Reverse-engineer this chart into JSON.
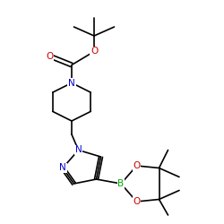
{
  "bg_color": "#ffffff",
  "bond_color": "#000000",
  "bond_width": 1.2,
  "atom_colors": {
    "N": "#0000cc",
    "O": "#cc0000",
    "B": "#00aa00",
    "C": "#000000"
  },
  "font_size": 7.5,
  "figsize": [
    2.5,
    2.5
  ],
  "dpi": 100,
  "xlim": [
    0,
    10
  ],
  "ylim": [
    0,
    10
  ]
}
